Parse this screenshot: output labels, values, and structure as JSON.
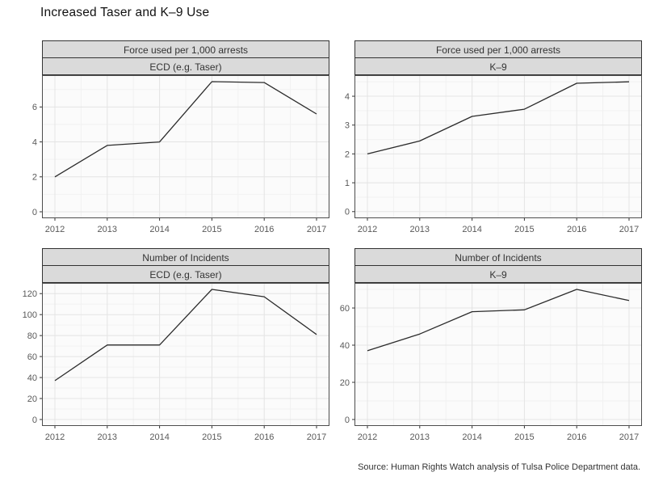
{
  "page": {
    "title": "Increased Taser and K–9 Use",
    "source": "Source: Human Rights Watch analysis of Tulsa Police Department data."
  },
  "colors": {
    "header_fill": "#dadada",
    "strip_border": "#333333",
    "panel_border": "#4d4d4d",
    "plot_bg": "#fbfbfb",
    "grid_major": "#e4e4e4",
    "grid_minor": "#f2f2f2",
    "line": "#2b2b2b",
    "tick": "#333333",
    "tick_label": "#595959",
    "title_text": "#111111",
    "source_text": "#333333"
  },
  "chart_data": [
    {
      "type": "line",
      "panel": "ecd-force-rate",
      "col_header": "Force used per 1,000 arrests",
      "row_header": "ECD (e.g. Taser)",
      "x": [
        2012,
        2013,
        2014,
        2015,
        2016,
        2017
      ],
      "values": [
        2.0,
        3.8,
        4.0,
        7.45,
        7.4,
        5.6
      ],
      "yticks": [
        0,
        2,
        4,
        6
      ],
      "ylim": [
        -0.37,
        7.82
      ],
      "xlabel": "",
      "ylabel": "",
      "grid": true,
      "legend": "none"
    },
    {
      "type": "line",
      "panel": "k9-force-rate",
      "col_header": "Force used per 1,000 arrests",
      "row_header": "K–9",
      "x": [
        2012,
        2013,
        2014,
        2015,
        2016,
        2017
      ],
      "values": [
        2.0,
        2.45,
        3.3,
        3.55,
        4.45,
        4.5
      ],
      "yticks": [
        0,
        1,
        2,
        3,
        4
      ],
      "ylim": [
        -0.23,
        4.73
      ],
      "xlabel": "",
      "ylabel": "",
      "grid": true,
      "legend": "none"
    },
    {
      "type": "line",
      "panel": "ecd-incidents",
      "col_header": "Number of Incidents",
      "row_header": "ECD (e.g. Taser)",
      "x": [
        2012,
        2013,
        2014,
        2015,
        2016,
        2017
      ],
      "values": [
        37,
        71,
        71,
        124,
        117,
        81
      ],
      "yticks": [
        0,
        20,
        40,
        60,
        80,
        100,
        120
      ],
      "ylim": [
        -6.2,
        130.2
      ],
      "xlabel": "",
      "ylabel": "",
      "grid": true,
      "legend": "none"
    },
    {
      "type": "line",
      "panel": "k9-incidents",
      "col_header": "Number of Incidents",
      "row_header": "K–9",
      "x": [
        2012,
        2013,
        2014,
        2015,
        2016,
        2017
      ],
      "values": [
        37,
        46,
        58,
        59,
        70,
        64
      ],
      "yticks": [
        0,
        20,
        40,
        60
      ],
      "ylim": [
        -3.5,
        73.5
      ],
      "xlabel": "",
      "ylabel": "",
      "grid": true,
      "legend": "none"
    }
  ]
}
